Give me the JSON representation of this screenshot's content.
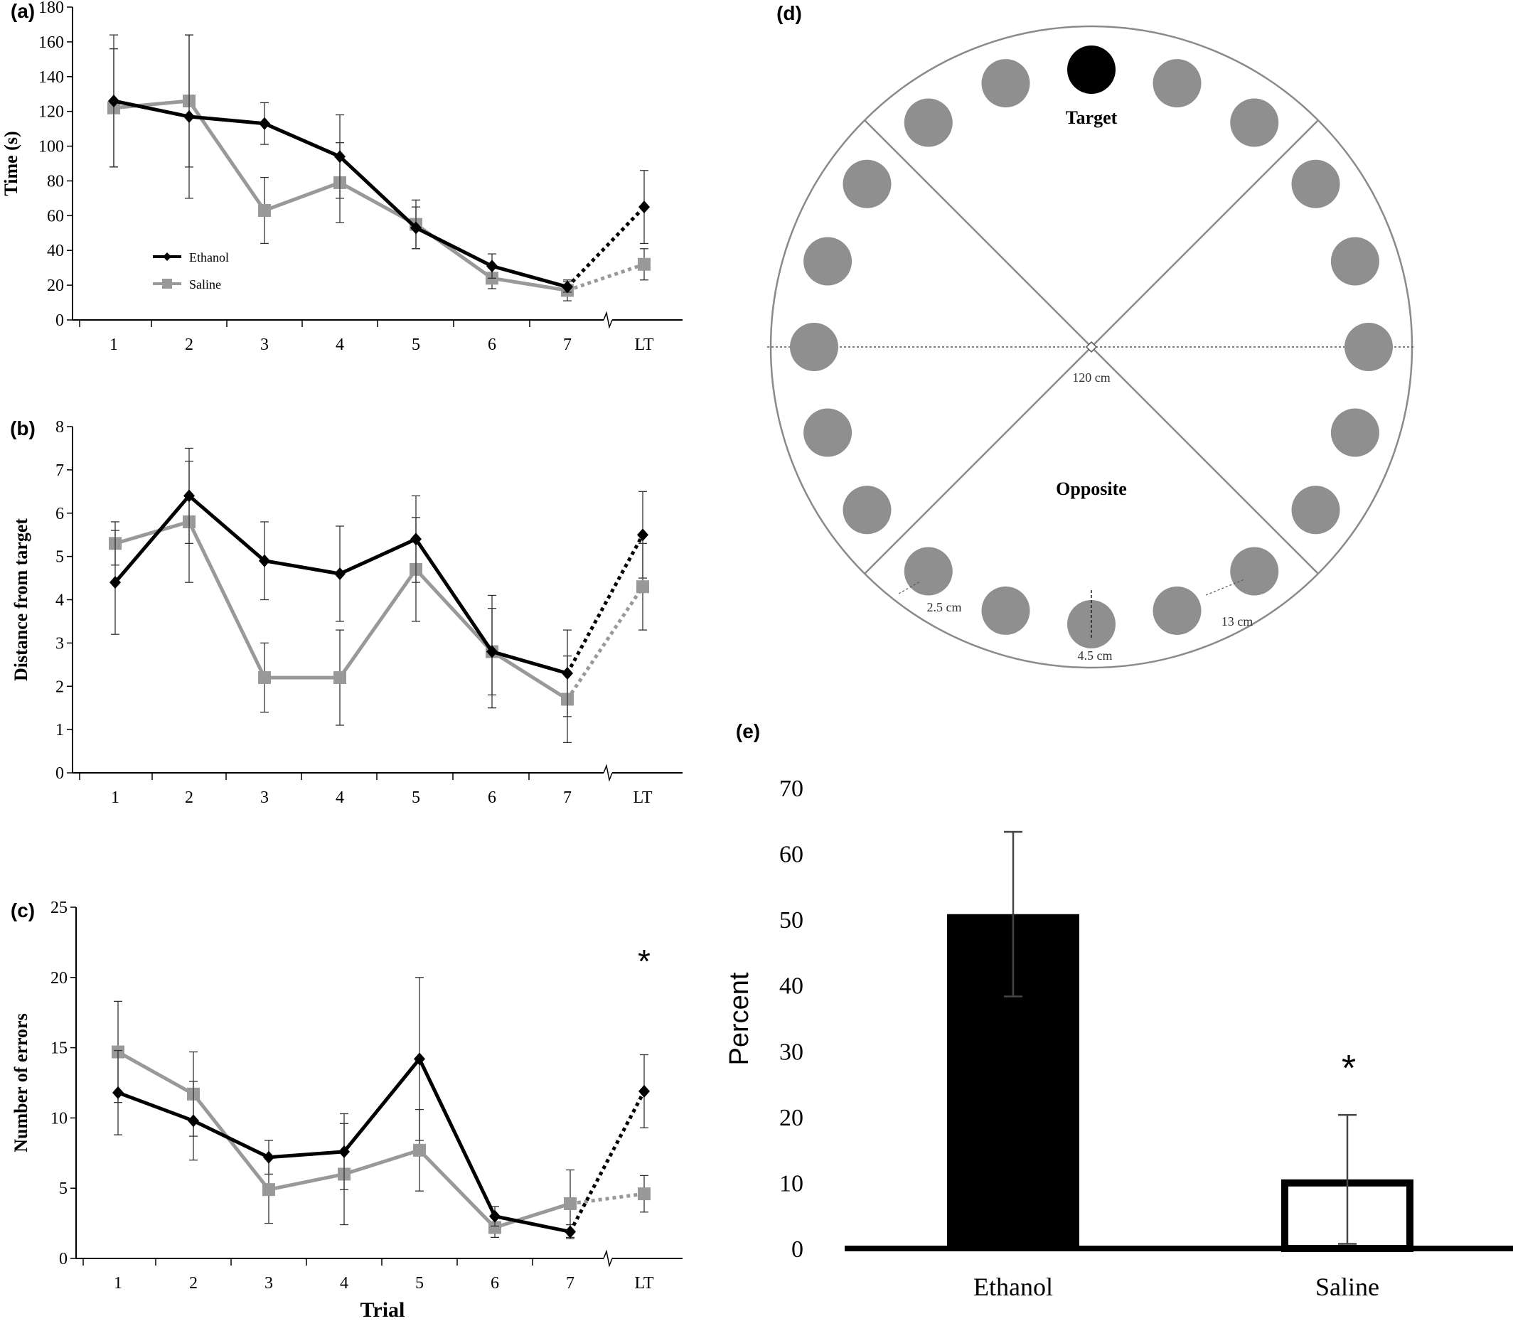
{
  "colors": {
    "ethanol": "#000000",
    "saline": "#999999",
    "well": "#8f8f8f",
    "target_well": "#000000",
    "arena_line": "#8a8a8a"
  },
  "chart_data": [
    {
      "panel": "(a)",
      "type": "line",
      "categories": [
        "1",
        "2",
        "3",
        "4",
        "5",
        "6",
        "7",
        "LT"
      ],
      "ylabel": "Time (s)",
      "xlabel": "",
      "ylim": [
        0,
        180
      ],
      "yticks": [
        "0",
        "20",
        "40",
        "60",
        "80",
        "100",
        "120",
        "140",
        "160",
        "180"
      ],
      "legend_placement": "middle-left",
      "axis_break": "between 7 and LT",
      "series": [
        {
          "name": "Ethanol",
          "marker": "diamond",
          "values": [
            126,
            117,
            113,
            94,
            53,
            31,
            19,
            65
          ],
          "err": [
            38,
            47,
            12,
            24,
            12,
            7,
            3,
            21
          ]
        },
        {
          "name": "Saline",
          "marker": "square",
          "values": [
            122,
            126,
            63,
            79,
            55,
            24,
            17,
            32
          ],
          "err": [
            34,
            38,
            19,
            23,
            14,
            6,
            6,
            9
          ]
        }
      ],
      "lt_connector": "dotted"
    },
    {
      "panel": "(b)",
      "type": "line",
      "categories": [
        "1",
        "2",
        "3",
        "4",
        "5",
        "6",
        "7",
        "LT"
      ],
      "ylabel": "Distance from target",
      "xlabel": "",
      "ylim": [
        0,
        8
      ],
      "yticks": [
        "0",
        "1",
        "2",
        "3",
        "4",
        "5",
        "6",
        "7",
        "8"
      ],
      "axis_break": "between 7 and LT",
      "series": [
        {
          "name": "Ethanol",
          "marker": "diamond",
          "values": [
            4.4,
            6.4,
            4.9,
            4.6,
            5.4,
            2.8,
            2.3,
            5.5
          ],
          "err": [
            1.2,
            1.1,
            0.9,
            1.1,
            1.0,
            1.3,
            1.0,
            1.0
          ]
        },
        {
          "name": "Saline",
          "marker": "square",
          "values": [
            5.3,
            5.8,
            2.2,
            2.2,
            4.7,
            2.8,
            1.7,
            4.3
          ],
          "err": [
            0.5,
            1.4,
            0.8,
            1.1,
            1.2,
            1.0,
            1.0,
            1.0
          ]
        }
      ],
      "lt_connector": "dotted"
    },
    {
      "panel": "(c)",
      "type": "line",
      "categories": [
        "1",
        "2",
        "3",
        "4",
        "5",
        "6",
        "7",
        "LT"
      ],
      "ylabel": "Number of  errors",
      "xlabel": "Trial",
      "ylim": [
        0,
        25
      ],
      "yticks": [
        "0",
        "5",
        "10",
        "15",
        "20",
        "25"
      ],
      "axis_break": "between 7 and LT",
      "annotation": "*",
      "series": [
        {
          "name": "Ethanol",
          "marker": "diamond",
          "values": [
            11.8,
            9.8,
            7.2,
            7.6,
            14.2,
            3.0,
            1.9,
            11.9
          ],
          "err": [
            3.0,
            2.8,
            1.2,
            2.7,
            5.8,
            0.7,
            0.5,
            2.6
          ]
        },
        {
          "name": "Saline",
          "marker": "square",
          "values": [
            14.7,
            11.7,
            4.9,
            6.0,
            7.7,
            2.2,
            3.9,
            4.6
          ],
          "err": [
            3.6,
            3.0,
            2.4,
            3.6,
            2.9,
            0.7,
            2.4,
            1.3
          ]
        }
      ],
      "lt_connector": "dotted"
    },
    {
      "panel": "(e)",
      "type": "bar",
      "categories": [
        "Ethanol",
        "Saline"
      ],
      "values": [
        50.8,
        10.5
      ],
      "err": [
        12.5,
        9.8
      ],
      "ylabel": "Percent",
      "xlabel": "",
      "ylim": [
        0,
        70
      ],
      "yticks": [
        "0",
        "10",
        "20",
        "30",
        "40",
        "50",
        "60",
        "70"
      ],
      "annotation": "*",
      "bar_fills": [
        "#000000",
        "#ffffff"
      ]
    }
  ],
  "diagram": {
    "panel": "(d)",
    "target_label": "Target",
    "opposite_label": "Opposite",
    "diameter_label": "120 cm",
    "hole_gap_label": "2.5 cm",
    "hole_diameter_label": "4.5 cm",
    "hole_spacing_label": "13 cm",
    "holes": 20
  }
}
